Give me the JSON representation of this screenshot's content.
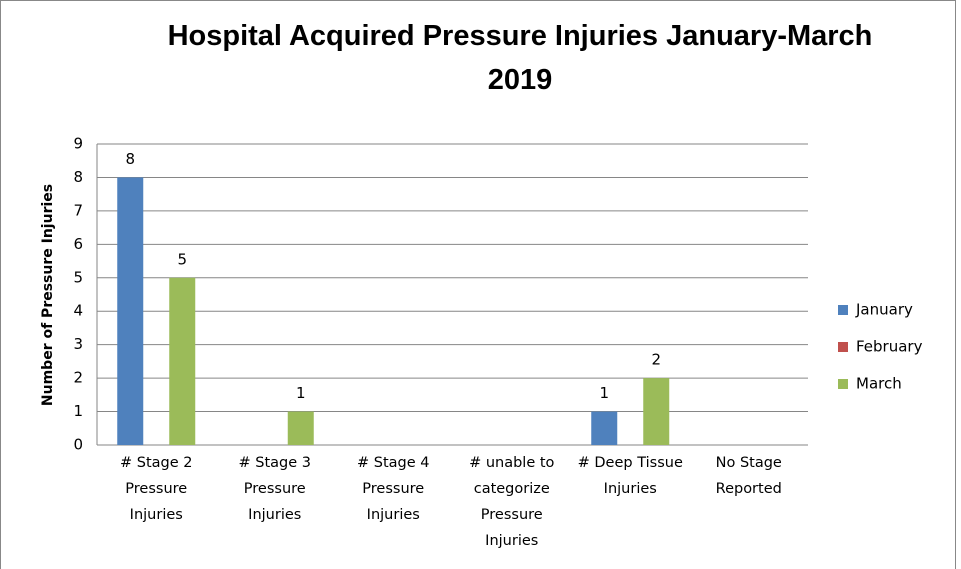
{
  "chart_data": {
    "type": "bar",
    "title": "Hospital Acquired Pressure Injuries January-March 2019",
    "y_label": "Number of Pressure Injuries",
    "categories": [
      "# Stage 2 Pressure Injuries",
      "# Stage 3 Pressure Injuries",
      "# Stage 4 Pressure Injuries",
      "# unable to categorize Pressure Injuries",
      "# Deep Tissue Injuries",
      "No Stage Reported"
    ],
    "series": [
      {
        "name": "January",
        "color": "#4f81bd",
        "values": [
          8,
          null,
          null,
          null,
          1,
          null
        ]
      },
      {
        "name": "February",
        "color": "#c0504d",
        "values": [
          null,
          null,
          null,
          null,
          null,
          null
        ]
      },
      {
        "name": "March",
        "color": "#9bbb59",
        "values": [
          5,
          1,
          null,
          null,
          2,
          null
        ]
      }
    ],
    "ylim": [
      0,
      9
    ],
    "yticks": [
      0,
      1,
      2,
      3,
      4,
      5,
      6,
      7,
      8,
      9
    ],
    "grid": true,
    "legend": "right"
  }
}
